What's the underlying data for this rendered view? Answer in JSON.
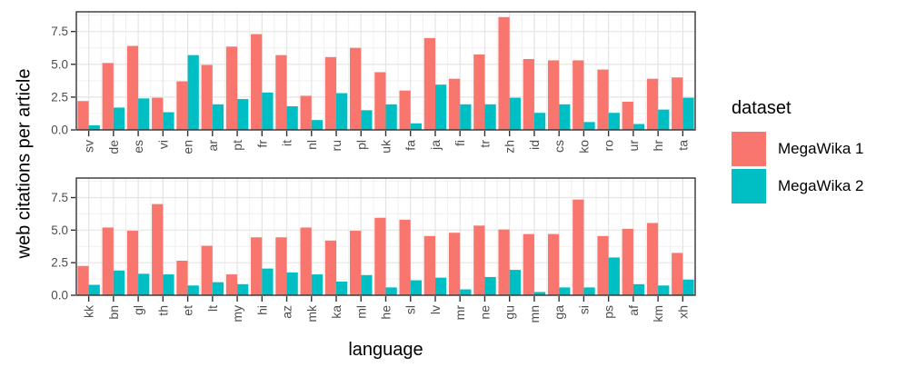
{
  "figure": {
    "y_axis_title": "web citations per article",
    "x_axis_title": "language"
  },
  "legend": {
    "title": "dataset",
    "items": [
      {
        "label": "MegaWika 1",
        "color": "#F8766D"
      },
      {
        "label": "MegaWika 2",
        "color": "#00BFC4"
      }
    ]
  },
  "chart_data": {
    "type": "bar",
    "subtype": "grouped-dodged, 2 stacked facet panels",
    "title": "",
    "xlabel": "language",
    "ylabel": "web citations per article",
    "ylim": [
      0,
      9
    ],
    "y_major_ticks": [
      0,
      2.5,
      5,
      7.5
    ],
    "y_tick_labels": [
      "0.0",
      "2.5",
      "5.0",
      "7.5"
    ],
    "y_minor_ticks": [
      1.25,
      3.75,
      6.25,
      8.75
    ],
    "legend_position": "right",
    "grid": true,
    "panels": [
      {
        "categories": [
          "sv",
          "de",
          "es",
          "vi",
          "en",
          "ar",
          "pt",
          "fr",
          "it",
          "nl",
          "ru",
          "pl",
          "uk",
          "fa",
          "ja",
          "fi",
          "tr",
          "zh",
          "id",
          "cs",
          "ko",
          "ro",
          "ur",
          "hr",
          "ta"
        ],
        "series": [
          {
            "name": "MegaWika 1",
            "values": [
              2.2,
              5.1,
              6.4,
              2.45,
              3.7,
              4.95,
              6.35,
              7.3,
              5.7,
              2.6,
              5.55,
              6.25,
              4.4,
              3.0,
              7.0,
              3.9,
              5.75,
              8.6,
              5.4,
              5.3,
              5.3,
              4.6,
              2.15,
              3.9,
              4.0
            ]
          },
          {
            "name": "MegaWika 2",
            "values": [
              0.35,
              1.7,
              2.4,
              1.35,
              5.7,
              1.95,
              2.35,
              2.85,
              1.8,
              0.75,
              2.8,
              1.5,
              1.95,
              0.5,
              3.45,
              1.95,
              1.95,
              2.45,
              1.3,
              1.95,
              0.6,
              1.3,
              0.45,
              1.55,
              2.45
            ]
          }
        ]
      },
      {
        "categories": [
          "kk",
          "bn",
          "gl",
          "th",
          "et",
          "lt",
          "my",
          "hi",
          "az",
          "mk",
          "ka",
          "ml",
          "he",
          "sl",
          "lv",
          "mr",
          "ne",
          "gu",
          "mn",
          "ga",
          "si",
          "ps",
          "af",
          "km",
          "xh"
        ],
        "series": [
          {
            "name": "MegaWika 1",
            "values": [
              2.25,
              5.2,
              4.95,
              7.0,
              2.65,
              3.8,
              1.6,
              4.45,
              4.45,
              5.2,
              4.2,
              4.95,
              5.95,
              5.8,
              4.55,
              4.8,
              5.35,
              5.05,
              4.7,
              4.7,
              7.35,
              4.55,
              5.1,
              5.55,
              3.25
            ]
          },
          {
            "name": "MegaWika 2",
            "values": [
              0.8,
              1.9,
              1.65,
              1.6,
              0.75,
              1.0,
              0.85,
              2.05,
              1.75,
              1.6,
              1.05,
              1.55,
              0.6,
              1.15,
              1.35,
              0.45,
              1.4,
              1.95,
              0.25,
              0.6,
              0.6,
              2.9,
              0.85,
              0.75,
              1.2
            ]
          }
        ]
      }
    ]
  }
}
